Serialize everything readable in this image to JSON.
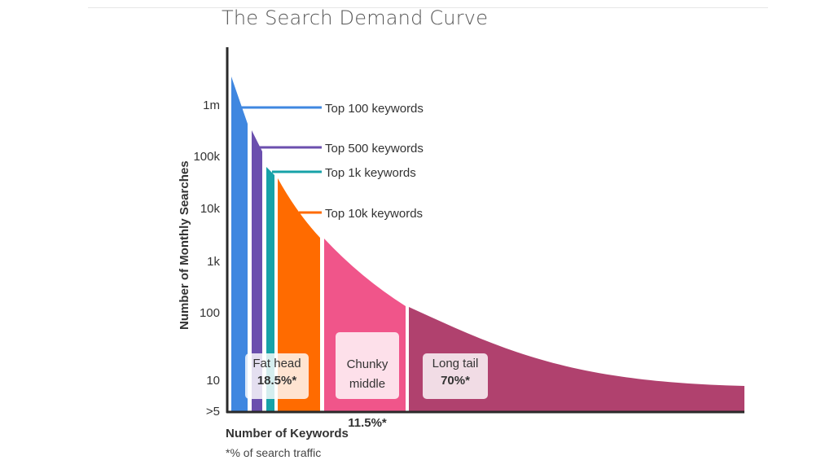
{
  "title": "The Search Demand Curve",
  "chart_data": {
    "type": "area",
    "title": "The Search Demand Curve",
    "xlabel": "Number of Keywords",
    "ylabel": "Number of Monthly Searches",
    "y_scale": "log",
    "y_ticks": [
      ">5",
      "10",
      "100",
      "1k",
      "10k",
      "100k",
      "1m"
    ],
    "footnote": "*% of search traffic",
    "bands": [
      {
        "name": "Top 100 keywords",
        "color": "#3f87e0",
        "y_start": "2.5m",
        "y_end": "1m"
      },
      {
        "name": "Top 500 keywords",
        "color": "#6b4fae",
        "y_start": "400k",
        "y_end": "120k"
      },
      {
        "name": "Top 1k keywords",
        "color": "#17a2a8",
        "y_start": "100k",
        "y_end": "55k"
      },
      {
        "name": "Top 10k keywords",
        "color": "#ff6b00",
        "y_start": "45k",
        "y_end": "2.8k"
      },
      {
        "name": "Chunky middle",
        "color": "#f0558a",
        "y_start": "2.5k",
        "y_end": "130"
      },
      {
        "name": "Long tail",
        "color": "#b0416e",
        "y_start": "120",
        "y_end": "7"
      }
    ],
    "callouts": [
      {
        "label": "Top 100",
        "suffix": "keywords",
        "color": "#3f87e0"
      },
      {
        "label": "Top 500",
        "suffix": "keywords",
        "color": "#6b4fae"
      },
      {
        "label": "Top 1k",
        "suffix": "keywords",
        "color": "#17a2a8"
      },
      {
        "label": "Top 10k",
        "suffix": "keywords",
        "color": "#ff6b00"
      }
    ],
    "segments": [
      {
        "name": "Fat head",
        "share": "18.5%*"
      },
      {
        "name": "Chunky\nmiddle",
        "share": "11.5%*"
      },
      {
        "name": "Long tail",
        "share": "70%*"
      }
    ]
  }
}
